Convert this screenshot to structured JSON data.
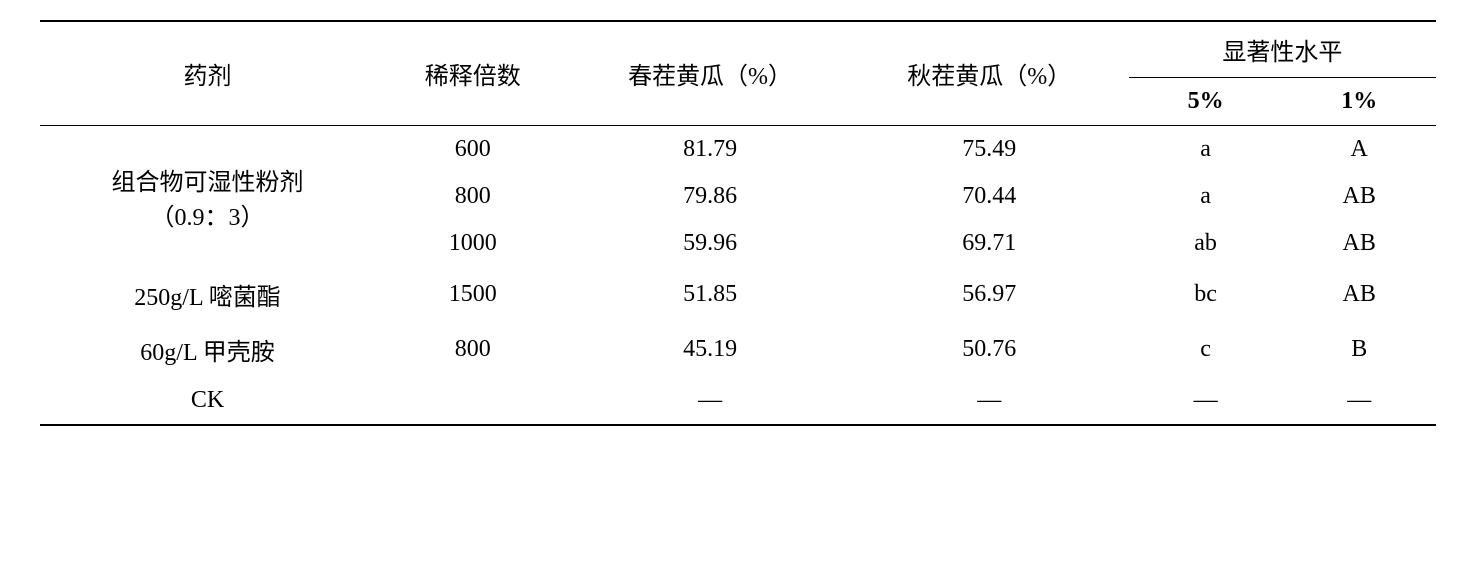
{
  "columns": {
    "agent": "药剂",
    "dilution": "稀释倍数",
    "spring": "春茬黄瓜（%）",
    "autumn": "秋茬黄瓜（%）",
    "sig_group": "显著性水平",
    "sig5": "5%",
    "sig1": "1%"
  },
  "rows": [
    {
      "agent_line1": "组合物可湿性粉剂",
      "agent_line2": "（0.9：3）",
      "dilution": "600",
      "spring": "81.79",
      "autumn": "75.49",
      "sig5": "a",
      "sig1": "A"
    },
    {
      "dilution": "800",
      "spring": "79.86",
      "autumn": "70.44",
      "sig5": "a",
      "sig1": "AB"
    },
    {
      "dilution": "1000",
      "spring": "59.96",
      "autumn": "69.71",
      "sig5": "ab",
      "sig1": "AB"
    },
    {
      "agent": "250g/L 嘧菌酯",
      "dilution": "1500",
      "spring": "51.85",
      "autumn": "56.97",
      "sig5": "bc",
      "sig1": "AB"
    },
    {
      "agent": "60g/L 甲壳胺",
      "dilution": "800",
      "spring": "45.19",
      "autumn": "50.76",
      "sig5": "c",
      "sig1": "B"
    },
    {
      "agent": "CK",
      "dilution": "",
      "spring": "—",
      "autumn": "—",
      "sig5": "—",
      "sig1": "—"
    }
  ],
  "style": {
    "font_size_pt": 18,
    "background_color": "#ffffff",
    "text_color": "#000000",
    "border_color": "#000000",
    "border_top_width": 2,
    "border_mid_width": 1.5,
    "border_bottom_width": 2,
    "column_widths_pct": [
      24,
      14,
      20,
      20,
      11,
      11
    ]
  }
}
